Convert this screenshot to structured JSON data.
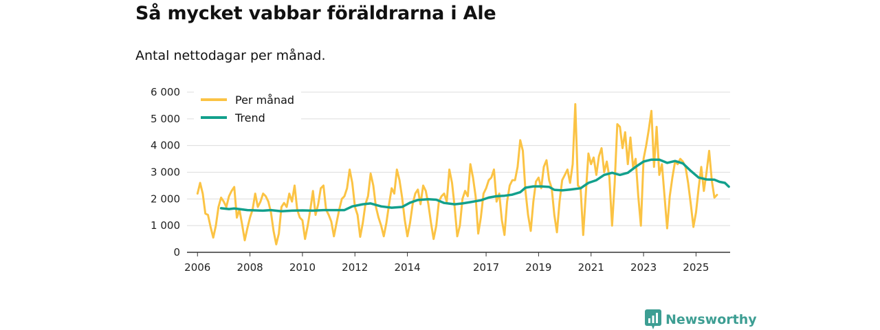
{
  "title": "Så mycket vabbar föräldrarna i Ale",
  "subtitle": "Antal nettodagar per månad.",
  "brand": {
    "name": "Newsworthy",
    "color": "#3d9e93"
  },
  "chart_data": {
    "type": "line",
    "ylim": [
      0,
      6000
    ],
    "y_ticks": [
      0,
      1000,
      2000,
      3000,
      4000,
      5000,
      6000
    ],
    "y_tick_labels": [
      "0",
      "1 000",
      "2 000",
      "3 000",
      "4 000",
      "5 000",
      "6 000"
    ],
    "x_range": [
      2005.6,
      2026.3
    ],
    "x_ticks": [
      2006,
      2008,
      2010,
      2012,
      2014,
      2017,
      2019,
      2021,
      2023,
      2025
    ],
    "x_tick_labels": [
      "2006",
      "2008",
      "2010",
      "2012",
      "2014",
      "2017",
      "2019",
      "2021",
      "2023",
      "2025"
    ],
    "grid": true,
    "legend_position": "top-left",
    "series": [
      {
        "name": "Per månad",
        "color": "#fbc344",
        "points": [
          [
            2006.0,
            2200
          ],
          [
            2006.1,
            2600
          ],
          [
            2006.2,
            2200
          ],
          [
            2006.3,
            1450
          ],
          [
            2006.4,
            1400
          ],
          [
            2006.5,
            950
          ],
          [
            2006.6,
            550
          ],
          [
            2006.7,
            1000
          ],
          [
            2006.8,
            1700
          ],
          [
            2006.9,
            2050
          ],
          [
            2007.0,
            1900
          ],
          [
            2007.1,
            1700
          ],
          [
            2007.2,
            2100
          ],
          [
            2007.3,
            2300
          ],
          [
            2007.4,
            2450
          ],
          [
            2007.5,
            1300
          ],
          [
            2007.6,
            1600
          ],
          [
            2007.7,
            1050
          ],
          [
            2007.8,
            450
          ],
          [
            2007.9,
            900
          ],
          [
            2008.0,
            1300
          ],
          [
            2008.1,
            1600
          ],
          [
            2008.2,
            2200
          ],
          [
            2008.3,
            1700
          ],
          [
            2008.4,
            1900
          ],
          [
            2008.5,
            2200
          ],
          [
            2008.6,
            2100
          ],
          [
            2008.7,
            1900
          ],
          [
            2008.8,
            1500
          ],
          [
            2008.9,
            800
          ],
          [
            2009.0,
            300
          ],
          [
            2009.1,
            700
          ],
          [
            2009.2,
            1700
          ],
          [
            2009.3,
            1850
          ],
          [
            2009.4,
            1700
          ],
          [
            2009.5,
            2200
          ],
          [
            2009.6,
            1900
          ],
          [
            2009.7,
            2500
          ],
          [
            2009.8,
            1600
          ],
          [
            2009.9,
            1300
          ],
          [
            2010.0,
            1200
          ],
          [
            2010.1,
            500
          ],
          [
            2010.2,
            1000
          ],
          [
            2010.3,
            1600
          ],
          [
            2010.4,
            2300
          ],
          [
            2010.5,
            1400
          ],
          [
            2010.6,
            1800
          ],
          [
            2010.7,
            2400
          ],
          [
            2010.8,
            2500
          ],
          [
            2010.9,
            1600
          ],
          [
            2011.0,
            1400
          ],
          [
            2011.1,
            1150
          ],
          [
            2011.2,
            600
          ],
          [
            2011.3,
            1100
          ],
          [
            2011.4,
            1600
          ],
          [
            2011.5,
            2000
          ],
          [
            2011.6,
            2100
          ],
          [
            2011.7,
            2400
          ],
          [
            2011.8,
            3100
          ],
          [
            2011.9,
            2600
          ],
          [
            2012.0,
            1700
          ],
          [
            2012.1,
            1400
          ],
          [
            2012.2,
            580
          ],
          [
            2012.3,
            1100
          ],
          [
            2012.4,
            1800
          ],
          [
            2012.5,
            2100
          ],
          [
            2012.6,
            2950
          ],
          [
            2012.7,
            2500
          ],
          [
            2012.8,
            1700
          ],
          [
            2012.9,
            1300
          ],
          [
            2013.0,
            1000
          ],
          [
            2013.1,
            600
          ],
          [
            2013.2,
            1100
          ],
          [
            2013.3,
            1800
          ],
          [
            2013.4,
            2400
          ],
          [
            2013.5,
            2200
          ],
          [
            2013.6,
            3100
          ],
          [
            2013.7,
            2700
          ],
          [
            2013.8,
            2050
          ],
          [
            2013.9,
            1200
          ],
          [
            2014.0,
            600
          ],
          [
            2014.1,
            1100
          ],
          [
            2014.2,
            1800
          ],
          [
            2014.3,
            2200
          ],
          [
            2014.4,
            2350
          ],
          [
            2014.5,
            1800
          ],
          [
            2014.6,
            2500
          ],
          [
            2014.7,
            2300
          ],
          [
            2014.8,
            1800
          ],
          [
            2014.9,
            1100
          ],
          [
            2015.0,
            500
          ],
          [
            2015.1,
            1000
          ],
          [
            2015.2,
            1900
          ],
          [
            2015.3,
            2100
          ],
          [
            2015.4,
            2200
          ],
          [
            2015.5,
            1900
          ],
          [
            2015.6,
            3100
          ],
          [
            2015.7,
            2600
          ],
          [
            2015.8,
            1700
          ],
          [
            2015.9,
            600
          ],
          [
            2016.0,
            1000
          ],
          [
            2016.1,
            2000
          ],
          [
            2016.2,
            2300
          ],
          [
            2016.3,
            2100
          ],
          [
            2016.4,
            3300
          ],
          [
            2016.5,
            2800
          ],
          [
            2016.6,
            2100
          ],
          [
            2016.7,
            700
          ],
          [
            2016.8,
            1300
          ],
          [
            2016.9,
            2200
          ],
          [
            2017.0,
            2400
          ],
          [
            2017.1,
            2700
          ],
          [
            2017.2,
            2800
          ],
          [
            2017.3,
            3100
          ],
          [
            2017.4,
            1900
          ],
          [
            2017.5,
            2200
          ],
          [
            2017.6,
            1200
          ],
          [
            2017.7,
            650
          ],
          [
            2017.8,
            1900
          ],
          [
            2017.9,
            2500
          ],
          [
            2018.0,
            2700
          ],
          [
            2018.1,
            2700
          ],
          [
            2018.2,
            3200
          ],
          [
            2018.3,
            4200
          ],
          [
            2018.4,
            3800
          ],
          [
            2018.5,
            2300
          ],
          [
            2018.6,
            1400
          ],
          [
            2018.7,
            800
          ],
          [
            2018.8,
            1900
          ],
          [
            2018.9,
            2650
          ],
          [
            2019.0,
            2800
          ],
          [
            2019.1,
            2400
          ],
          [
            2019.2,
            3200
          ],
          [
            2019.3,
            3450
          ],
          [
            2019.4,
            2700
          ],
          [
            2019.5,
            2400
          ],
          [
            2019.6,
            1400
          ],
          [
            2019.7,
            750
          ],
          [
            2019.8,
            1900
          ],
          [
            2019.9,
            2700
          ],
          [
            2020.0,
            2900
          ],
          [
            2020.1,
            3100
          ],
          [
            2020.2,
            2600
          ],
          [
            2020.3,
            3300
          ],
          [
            2020.4,
            5550
          ],
          [
            2020.5,
            2500
          ],
          [
            2020.6,
            2400
          ],
          [
            2020.7,
            650
          ],
          [
            2020.8,
            2200
          ],
          [
            2020.9,
            3700
          ],
          [
            2021.0,
            3300
          ],
          [
            2021.1,
            3550
          ],
          [
            2021.2,
            2900
          ],
          [
            2021.3,
            3600
          ],
          [
            2021.4,
            3900
          ],
          [
            2021.5,
            3000
          ],
          [
            2021.6,
            3400
          ],
          [
            2021.7,
            2800
          ],
          [
            2021.8,
            1000
          ],
          [
            2021.9,
            2600
          ],
          [
            2022.0,
            4800
          ],
          [
            2022.1,
            4700
          ],
          [
            2022.2,
            3900
          ],
          [
            2022.3,
            4500
          ],
          [
            2022.4,
            3300
          ],
          [
            2022.5,
            4300
          ],
          [
            2022.6,
            3200
          ],
          [
            2022.7,
            3500
          ],
          [
            2022.8,
            2100
          ],
          [
            2022.9,
            1000
          ],
          [
            2023.0,
            3500
          ],
          [
            2023.1,
            4000
          ],
          [
            2023.2,
            4600
          ],
          [
            2023.3,
            5300
          ],
          [
            2023.4,
            3200
          ],
          [
            2023.5,
            4700
          ],
          [
            2023.6,
            2900
          ],
          [
            2023.7,
            3300
          ],
          [
            2023.8,
            2100
          ],
          [
            2023.9,
            900
          ],
          [
            2024.0,
            2100
          ],
          [
            2024.1,
            2800
          ],
          [
            2024.2,
            3400
          ],
          [
            2024.3,
            3300
          ],
          [
            2024.4,
            3500
          ],
          [
            2024.5,
            3400
          ],
          [
            2024.6,
            3200
          ],
          [
            2024.7,
            2600
          ],
          [
            2024.8,
            1800
          ],
          [
            2024.9,
            950
          ],
          [
            2025.0,
            1500
          ],
          [
            2025.1,
            2400
          ],
          [
            2025.2,
            3200
          ],
          [
            2025.3,
            2300
          ],
          [
            2025.4,
            3000
          ],
          [
            2025.5,
            3800
          ],
          [
            2025.6,
            2700
          ],
          [
            2025.7,
            2050
          ],
          [
            2025.8,
            2150
          ]
        ]
      },
      {
        "name": "Trend",
        "color": "#12a08c",
        "points": [
          [
            2006.9,
            1650
          ],
          [
            2007.2,
            1620
          ],
          [
            2007.4,
            1640
          ],
          [
            2007.6,
            1620
          ],
          [
            2007.9,
            1580
          ],
          [
            2008.2,
            1570
          ],
          [
            2008.5,
            1560
          ],
          [
            2008.8,
            1580
          ],
          [
            2009.2,
            1540
          ],
          [
            2009.6,
            1560
          ],
          [
            2010.0,
            1570
          ],
          [
            2010.4,
            1560
          ],
          [
            2010.8,
            1580
          ],
          [
            2011.2,
            1580
          ],
          [
            2011.6,
            1580
          ],
          [
            2011.9,
            1720
          ],
          [
            2012.3,
            1800
          ],
          [
            2012.6,
            1830
          ],
          [
            2013.0,
            1720
          ],
          [
            2013.4,
            1670
          ],
          [
            2013.8,
            1700
          ],
          [
            2014.1,
            1860
          ],
          [
            2014.4,
            1960
          ],
          [
            2014.8,
            1990
          ],
          [
            2015.1,
            1970
          ],
          [
            2015.4,
            1850
          ],
          [
            2015.8,
            1800
          ],
          [
            2016.1,
            1830
          ],
          [
            2016.4,
            1880
          ],
          [
            2016.8,
            1950
          ],
          [
            2017.1,
            2050
          ],
          [
            2017.4,
            2100
          ],
          [
            2017.7,
            2120
          ],
          [
            2018.0,
            2160
          ],
          [
            2018.3,
            2250
          ],
          [
            2018.5,
            2420
          ],
          [
            2018.8,
            2470
          ],
          [
            2019.1,
            2470
          ],
          [
            2019.4,
            2450
          ],
          [
            2019.6,
            2340
          ],
          [
            2019.9,
            2320
          ],
          [
            2020.2,
            2350
          ],
          [
            2020.6,
            2400
          ],
          [
            2020.9,
            2600
          ],
          [
            2021.2,
            2700
          ],
          [
            2021.5,
            2900
          ],
          [
            2021.8,
            2980
          ],
          [
            2022.1,
            2900
          ],
          [
            2022.4,
            2980
          ],
          [
            2022.7,
            3200
          ],
          [
            2023.0,
            3400
          ],
          [
            2023.3,
            3470
          ],
          [
            2023.6,
            3470
          ],
          [
            2023.9,
            3350
          ],
          [
            2024.2,
            3420
          ],
          [
            2024.5,
            3330
          ],
          [
            2024.8,
            3050
          ],
          [
            2025.1,
            2800
          ],
          [
            2025.4,
            2730
          ],
          [
            2025.7,
            2720
          ],
          [
            2025.9,
            2640
          ],
          [
            2026.1,
            2600
          ],
          [
            2026.25,
            2460
          ]
        ]
      }
    ]
  }
}
